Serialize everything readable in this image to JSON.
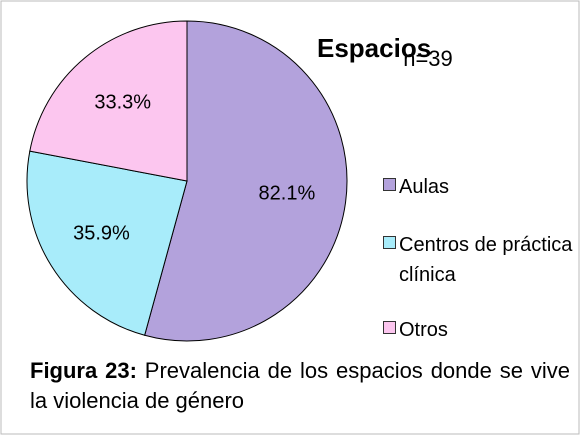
{
  "chart_data": {
    "type": "pie",
    "title": "Espacios",
    "subtitle": "n=39",
    "categories": [
      "Aulas",
      "Centros de práctica clínica",
      "Otros"
    ],
    "values": [
      82.1,
      35.9,
      33.3
    ],
    "value_labels": [
      "82.1%",
      "35.9%",
      "33.3%"
    ],
    "colors": [
      "#b3a2dc",
      "#a8ecfa",
      "#fcc6ef"
    ],
    "legend": "right"
  },
  "caption": {
    "label": "Figura 23:",
    "text": "Prevalencia de los espacios donde se vive la violencia de género"
  }
}
